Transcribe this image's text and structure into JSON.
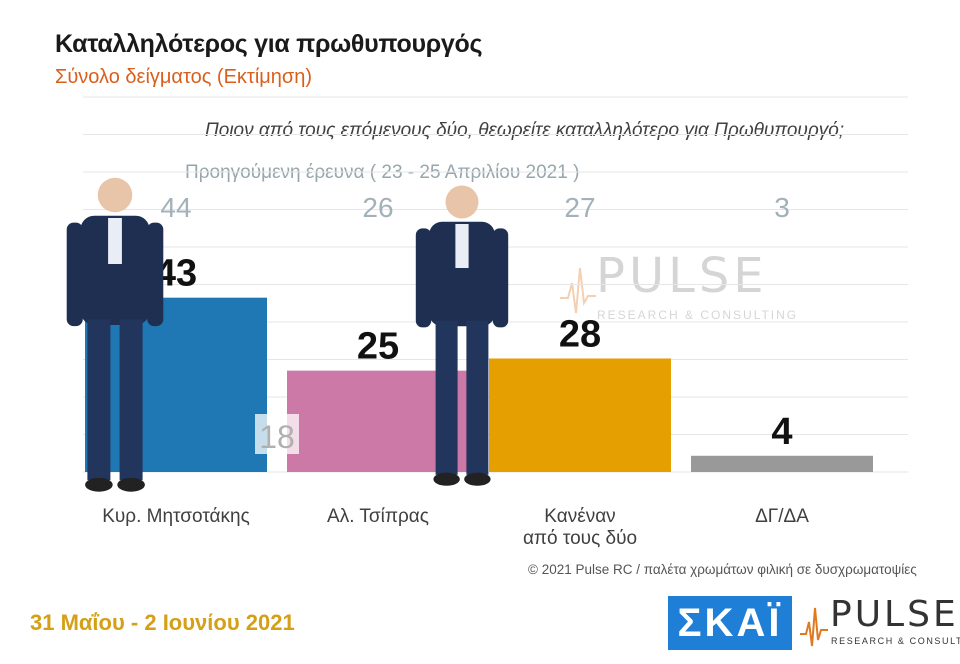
{
  "header": {
    "title": "Καταλληλότερος για πρωθυπουργός",
    "subtitle": "Σύνολο δείγματος   (Εκτίμηση)"
  },
  "question": "Ποιον από τους επόμενους δύο, θεωρείτε καταλληλότερο για Πρωθυπουργό;",
  "previous_survey_note": "Προηγούμενη έρευνα  ( 23 - 25 Απριλίου 2021 )",
  "chart_data": {
    "type": "bar",
    "categories": [
      [
        "Κυρ. Μητσοτάκης"
      ],
      [
        "Αλ. Τσίπρας"
      ],
      [
        "Κανέναν",
        "από τους δύο"
      ],
      [
        "ΔΓ/ΔΑ"
      ]
    ],
    "series": [
      {
        "values": [
          43,
          25,
          28,
          4
        ],
        "colors": [
          "#1f77b4",
          "#cc79a7",
          "#e69f00",
          "#999999"
        ]
      }
    ],
    "previous_values": [
      44,
      26,
      27,
      3
    ],
    "ylim": [
      0,
      50
    ],
    "annotations": [
      {
        "category_index": 1,
        "text": "18"
      }
    ],
    "grid": true
  },
  "watermark": {
    "word": "PULSE",
    "sub": "RESEARCH & CONSULTING"
  },
  "footer": {
    "copyright": "© 2021 Pulse RC  /   παλέτα χρωμάτων φιλική σε δυσχρωματοψίες",
    "date": "31 Μαΐου - 2 Ιουνίου 2021"
  },
  "logos": {
    "skai": "ΣΚΑΪ",
    "pulse": "PULSE",
    "pulse_sub": "RESEARCH & CONSULTING"
  },
  "people": [
    {
      "icon": "person-mitsotakis-photo"
    },
    {
      "icon": "person-tsipras-photo"
    }
  ]
}
